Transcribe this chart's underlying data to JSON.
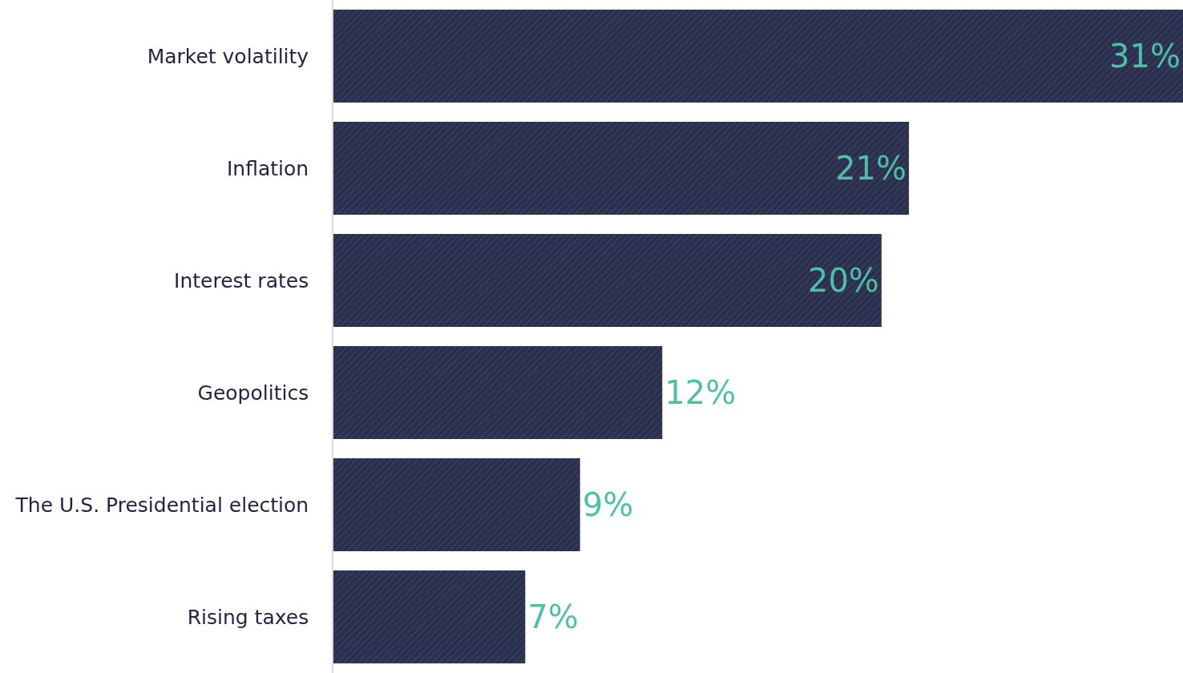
{
  "chart_data": {
    "type": "bar",
    "orientation": "horizontal",
    "categories": [
      "Market volatility",
      "Inflation",
      "Interest rates",
      "Geopolitics",
      "The U.S. Presidential election",
      "Rising taxes"
    ],
    "values": [
      31,
      21,
      20,
      12,
      9,
      7
    ],
    "value_labels": [
      "31%",
      "21%",
      "20%",
      "12%",
      "9%",
      "7%"
    ],
    "color": "#2b2f4e",
    "tick_labels": "y"
  }
}
